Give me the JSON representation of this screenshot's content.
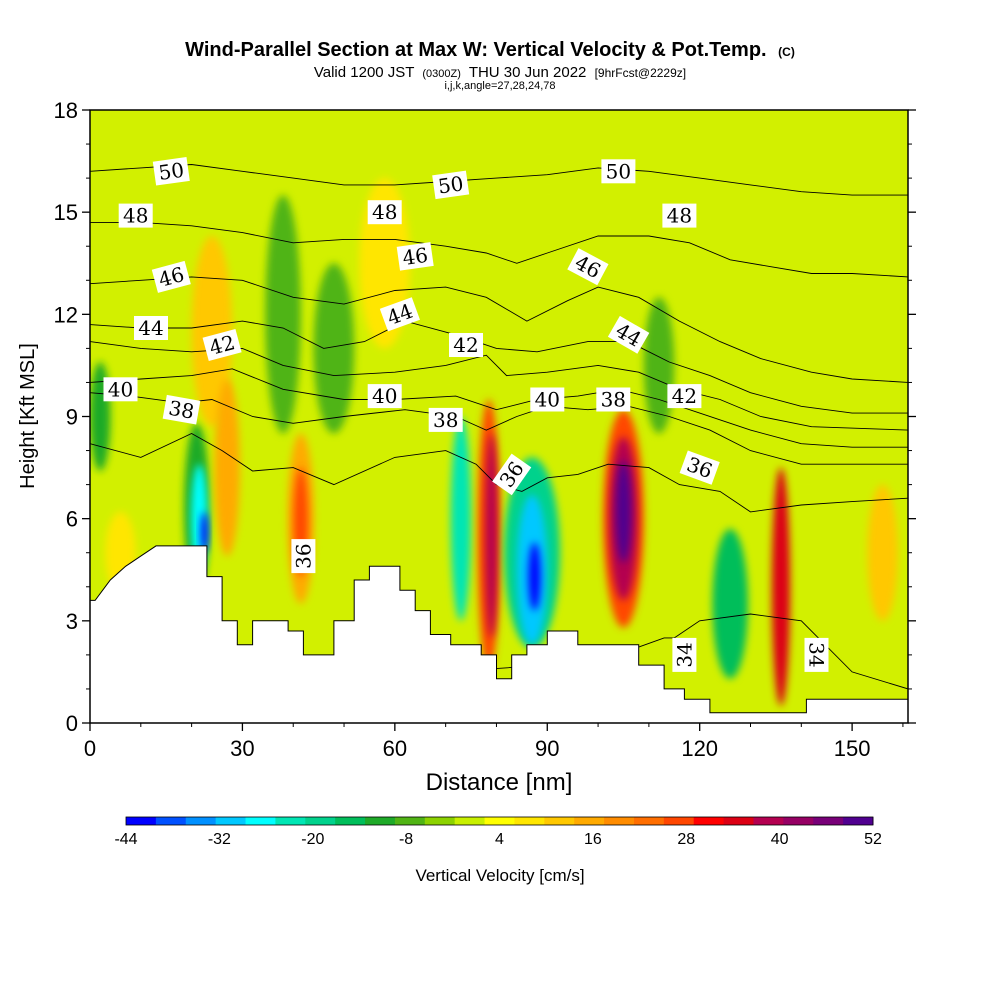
{
  "chart_data": {
    "type": "heatmap",
    "title": "Wind-Parallel Section at Max W: Vertical Velocity & Pot.Temp.",
    "title_mark": "(C)",
    "subtitle_parts": [
      "Valid 1200 JST",
      "(0300Z)",
      "THU 30 Jun 2022",
      "[9hrFcst@2229z]"
    ],
    "subtitle2": "i,j,k,angle=27,28,24,78",
    "xlabel": "Distance [nm]",
    "ylabel": "Height [Kft MSL]",
    "xlim": [
      0,
      161
    ],
    "ylim": [
      0,
      18
    ],
    "x_ticks": [
      0,
      30,
      60,
      90,
      120,
      150
    ],
    "y_ticks": [
      0,
      3,
      6,
      9,
      12,
      15,
      18
    ],
    "x_tick_labels": [
      "0",
      "30",
      "60",
      "90",
      "120",
      "150"
    ],
    "y_tick_labels": [
      "0",
      "3",
      "6",
      "9",
      "12",
      "15",
      "18"
    ],
    "colorbar": {
      "label": "Vertical Velocity [cm/s]",
      "levels": [
        -44,
        -40,
        -36,
        -32,
        -28,
        -24,
        -20,
        -16,
        -12,
        -8,
        -4,
        0,
        4,
        8,
        12,
        16,
        20,
        24,
        28,
        32,
        36,
        40,
        44,
        48,
        52
      ],
      "tick_labels": [
        "-44",
        "-32",
        "-20",
        "-8",
        "4",
        "16",
        "28",
        "40",
        "52"
      ],
      "colors": [
        "#0000ff",
        "#0050ff",
        "#0090ff",
        "#00c8ff",
        "#00ffff",
        "#00e6b4",
        "#00d28c",
        "#00be5a",
        "#1eaa28",
        "#50b414",
        "#8cd200",
        "#c8f000",
        "#ffff00",
        "#ffe600",
        "#ffc800",
        "#ffaa00",
        "#ff8c00",
        "#ff6e00",
        "#ff4600",
        "#ff0000",
        "#dc0014",
        "#b40050",
        "#960064",
        "#780078",
        "#500090"
      ]
    },
    "background_color": "#d2f000",
    "terrain_profile": [
      [
        0,
        3.6
      ],
      [
        1,
        3.6
      ],
      [
        4,
        4.2
      ],
      [
        7,
        4.6
      ],
      [
        10,
        4.9
      ],
      [
        13,
        5.2
      ],
      [
        23,
        5.2
      ],
      [
        23,
        4.3
      ],
      [
        26,
        4.3
      ],
      [
        26,
        3.0
      ],
      [
        29,
        3.0
      ],
      [
        29,
        2.3
      ],
      [
        32,
        2.3
      ],
      [
        32,
        3.0
      ],
      [
        39,
        3.0
      ],
      [
        39,
        2.7
      ],
      [
        42,
        2.7
      ],
      [
        42,
        2.0
      ],
      [
        48,
        2.0
      ],
      [
        48,
        3.0
      ],
      [
        52,
        3.0
      ],
      [
        52,
        4.2
      ],
      [
        55,
        4.2
      ],
      [
        55,
        4.6
      ],
      [
        61,
        4.6
      ],
      [
        61,
        3.9
      ],
      [
        64,
        3.9
      ],
      [
        64,
        3.3
      ],
      [
        67,
        3.3
      ],
      [
        67,
        2.6
      ],
      [
        71,
        2.6
      ],
      [
        71,
        2.3
      ],
      [
        77,
        2.3
      ],
      [
        77,
        2.0
      ],
      [
        80,
        2.0
      ],
      [
        80,
        1.3
      ],
      [
        83,
        1.3
      ],
      [
        83,
        2.0
      ],
      [
        86,
        2.0
      ],
      [
        86,
        2.3
      ],
      [
        90,
        2.3
      ],
      [
        90,
        2.7
      ],
      [
        96,
        2.7
      ],
      [
        96,
        2.3
      ],
      [
        108,
        2.3
      ],
      [
        108,
        1.7
      ],
      [
        113,
        1.7
      ],
      [
        113,
        1.0
      ],
      [
        117,
        1.0
      ],
      [
        117,
        0.7
      ],
      [
        122,
        0.7
      ],
      [
        122,
        0.3
      ],
      [
        141,
        0.3
      ],
      [
        141,
        0.7
      ],
      [
        161,
        0.7
      ]
    ],
    "cells": [
      {
        "x": 2,
        "y": 9.0,
        "w": 2,
        "h": 1.6,
        "value": -12
      },
      {
        "x": 6,
        "y": 5.0,
        "w": 3,
        "h": 1.2,
        "value": 8
      },
      {
        "x": 21,
        "y": 6.3,
        "w": 2.5,
        "h": 2.5,
        "value": -10
      },
      {
        "x": 21.5,
        "y": 6.0,
        "w": 1.6,
        "h": 1.6,
        "value": -28
      },
      {
        "x": 22.5,
        "y": 5.6,
        "w": 0.7,
        "h": 0.6,
        "value": -44
      },
      {
        "x": 24,
        "y": 11.5,
        "w": 4,
        "h": 2.8,
        "value": 12
      },
      {
        "x": 27,
        "y": 7.5,
        "w": 2.5,
        "h": 2.6,
        "value": 16
      },
      {
        "x": 41.5,
        "y": 6.0,
        "w": 2.6,
        "h": 2.5,
        "value": 16
      },
      {
        "x": 41.5,
        "y": 5.9,
        "w": 1.4,
        "h": 1.6,
        "value": 28
      },
      {
        "x": 38,
        "y": 12.0,
        "w": 3.5,
        "h": 3.5,
        "value": -8
      },
      {
        "x": 48,
        "y": 11.0,
        "w": 4,
        "h": 2.5,
        "value": -8
      },
      {
        "x": 58,
        "y": 13.5,
        "w": 5,
        "h": 2.5,
        "value": 8
      },
      {
        "x": 73,
        "y": 6.0,
        "w": 2,
        "h": 3.0,
        "value": -24
      },
      {
        "x": 78.5,
        "y": 5.5,
        "w": 2.2,
        "h": 4.0,
        "value": 28
      },
      {
        "x": 79,
        "y": 5.5,
        "w": 1.2,
        "h": 3.0,
        "value": 40
      },
      {
        "x": 87,
        "y": 5.0,
        "w": 5.5,
        "h": 2.8,
        "value": -20
      },
      {
        "x": 87,
        "y": 4.5,
        "w": 3.0,
        "h": 2.2,
        "value": -32
      },
      {
        "x": 87.5,
        "y": 4.3,
        "w": 1.2,
        "h": 1.0,
        "value": -44
      },
      {
        "x": 105,
        "y": 6.0,
        "w": 4.0,
        "h": 3.2,
        "value": 28
      },
      {
        "x": 105,
        "y": 6.0,
        "w": 2.8,
        "h": 2.4,
        "value": 40
      },
      {
        "x": 105,
        "y": 6.2,
        "w": 1.5,
        "h": 1.5,
        "value": 52
      },
      {
        "x": 112,
        "y": 10.5,
        "w": 3,
        "h": 2.0,
        "value": -8
      },
      {
        "x": 126,
        "y": 3.5,
        "w": 3.5,
        "h": 2.2,
        "value": -16
      },
      {
        "x": 136,
        "y": 4.0,
        "w": 1.8,
        "h": 3.5,
        "value": 36
      },
      {
        "x": 156,
        "y": 5.0,
        "w": 3,
        "h": 2.0,
        "value": 12
      }
    ],
    "isentropes": [
      {
        "level": 34,
        "points": [
          [
            10,
            1.0
          ],
          [
            40,
            1.2
          ],
          [
            70,
            1.5
          ],
          [
            100,
            1.8
          ],
          [
            113,
            2.5
          ],
          [
            115,
            2.5
          ],
          [
            120,
            3.0
          ],
          [
            130,
            3.2
          ],
          [
            140,
            3.0
          ],
          [
            150,
            1.5
          ],
          [
            161,
            1.0
          ]
        ]
      },
      {
        "level": 36,
        "points": [
          [
            0,
            8.2
          ],
          [
            10,
            7.8
          ],
          [
            20,
            8.5
          ],
          [
            26,
            8.0
          ],
          [
            32,
            7.4
          ],
          [
            40,
            7.5
          ],
          [
            48,
            7.0
          ],
          [
            60,
            7.8
          ],
          [
            70,
            8.0
          ],
          [
            76,
            7.6
          ],
          [
            80,
            7.0
          ],
          [
            85,
            6.8
          ],
          [
            90,
            7.2
          ],
          [
            96,
            7.3
          ],
          [
            102,
            7.6
          ],
          [
            110,
            7.5
          ],
          [
            116,
            7.0
          ],
          [
            124,
            6.8
          ],
          [
            130,
            6.2
          ],
          [
            140,
            6.4
          ],
          [
            150,
            6.5
          ],
          [
            161,
            6.6
          ]
        ]
      },
      {
        "level": 38,
        "points": [
          [
            0,
            9.7
          ],
          [
            8,
            9.6
          ],
          [
            18,
            9.4
          ],
          [
            24,
            9.5
          ],
          [
            32,
            9.0
          ],
          [
            40,
            8.8
          ],
          [
            50,
            9.0
          ],
          [
            62,
            9.2
          ],
          [
            72,
            9.0
          ],
          [
            78,
            8.6
          ],
          [
            84,
            9.0
          ],
          [
            90,
            9.3
          ],
          [
            98,
            9.2
          ],
          [
            106,
            9.3
          ],
          [
            114,
            9.0
          ],
          [
            122,
            8.6
          ],
          [
            130,
            8.0
          ],
          [
            140,
            7.6
          ],
          [
            150,
            7.6
          ],
          [
            161,
            7.6
          ]
        ]
      },
      {
        "level": 40,
        "points": [
          [
            0,
            10.0
          ],
          [
            10,
            10.1
          ],
          [
            20,
            10.2
          ],
          [
            28,
            10.4
          ],
          [
            38,
            9.8
          ],
          [
            50,
            9.5
          ],
          [
            60,
            9.5
          ],
          [
            72,
            9.6
          ],
          [
            80,
            9.2
          ],
          [
            88,
            9.5
          ],
          [
            96,
            9.6
          ],
          [
            104,
            9.8
          ],
          [
            112,
            9.5
          ],
          [
            120,
            9.1
          ],
          [
            130,
            8.6
          ],
          [
            140,
            8.2
          ],
          [
            150,
            8.1
          ],
          [
            161,
            8.1
          ]
        ]
      },
      {
        "level": 42,
        "points": [
          [
            0,
            11.2
          ],
          [
            10,
            11.0
          ],
          [
            20,
            10.9
          ],
          [
            30,
            11.0
          ],
          [
            38,
            10.5
          ],
          [
            48,
            10.2
          ],
          [
            60,
            10.3
          ],
          [
            70,
            10.5
          ],
          [
            78,
            10.8
          ],
          [
            82,
            10.2
          ],
          [
            90,
            10.3
          ],
          [
            100,
            10.5
          ],
          [
            108,
            10.3
          ],
          [
            116,
            9.8
          ],
          [
            124,
            9.5
          ],
          [
            132,
            9.0
          ],
          [
            142,
            8.7
          ],
          [
            161,
            8.6
          ]
        ]
      },
      {
        "level": 44,
        "points": [
          [
            0,
            11.7
          ],
          [
            10,
            11.6
          ],
          [
            20,
            11.6
          ],
          [
            30,
            11.8
          ],
          [
            38,
            11.6
          ],
          [
            46,
            11.0
          ],
          [
            54,
            11.2
          ],
          [
            62,
            11.8
          ],
          [
            72,
            11.4
          ],
          [
            80,
            11.0
          ],
          [
            88,
            10.9
          ],
          [
            98,
            11.2
          ],
          [
            106,
            11.2
          ],
          [
            114,
            10.6
          ],
          [
            122,
            10.2
          ],
          [
            130,
            9.7
          ],
          [
            140,
            9.3
          ],
          [
            150,
            9.1
          ],
          [
            161,
            9.1
          ]
        ]
      },
      {
        "level": 46,
        "points": [
          [
            0,
            12.9
          ],
          [
            10,
            13.0
          ],
          [
            20,
            13.1
          ],
          [
            30,
            13.0
          ],
          [
            40,
            12.5
          ],
          [
            50,
            12.3
          ],
          [
            60,
            12.7
          ],
          [
            70,
            12.8
          ],
          [
            78,
            12.5
          ],
          [
            86,
            11.8
          ],
          [
            94,
            12.4
          ],
          [
            100,
            12.8
          ],
          [
            108,
            12.5
          ],
          [
            116,
            11.8
          ],
          [
            124,
            11.2
          ],
          [
            132,
            10.7
          ],
          [
            142,
            10.3
          ],
          [
            150,
            10.1
          ],
          [
            161,
            10.0
          ]
        ]
      },
      {
        "level": 48,
        "points": [
          [
            0,
            14.7
          ],
          [
            10,
            14.7
          ],
          [
            20,
            14.6
          ],
          [
            30,
            14.4
          ],
          [
            40,
            14.1
          ],
          [
            50,
            14.2
          ],
          [
            60,
            14.2
          ],
          [
            70,
            14.0
          ],
          [
            78,
            13.8
          ],
          [
            84,
            13.5
          ],
          [
            90,
            13.8
          ],
          [
            100,
            14.3
          ],
          [
            110,
            14.3
          ],
          [
            118,
            14.1
          ],
          [
            126,
            13.6
          ],
          [
            134,
            13.4
          ],
          [
            142,
            13.2
          ],
          [
            150,
            13.2
          ],
          [
            161,
            13.1
          ]
        ]
      },
      {
        "level": 50,
        "points": [
          [
            0,
            16.2
          ],
          [
            10,
            16.3
          ],
          [
            20,
            16.4
          ],
          [
            30,
            16.2
          ],
          [
            40,
            16.0
          ],
          [
            50,
            15.8
          ],
          [
            60,
            15.8
          ],
          [
            70,
            15.9
          ],
          [
            80,
            16.0
          ],
          [
            90,
            16.1
          ],
          [
            100,
            16.3
          ],
          [
            110,
            16.2
          ],
          [
            120,
            16.0
          ],
          [
            130,
            15.8
          ],
          [
            140,
            15.6
          ],
          [
            150,
            15.5
          ],
          [
            161,
            15.5
          ]
        ]
      }
    ],
    "isentrope_labels": [
      {
        "text": "50",
        "x": 16,
        "y": 16.2,
        "angle": -8
      },
      {
        "text": "50",
        "x": 71,
        "y": 15.8,
        "angle": -8
      },
      {
        "text": "50",
        "x": 104,
        "y": 16.2,
        "angle": 0
      },
      {
        "text": "48",
        "x": 9,
        "y": 14.9,
        "angle": 0
      },
      {
        "text": "48",
        "x": 58,
        "y": 15.0,
        "angle": 0
      },
      {
        "text": "48",
        "x": 116,
        "y": 14.9,
        "angle": 0
      },
      {
        "text": "46",
        "x": 16,
        "y": 13.1,
        "angle": -15
      },
      {
        "text": "46",
        "x": 64,
        "y": 13.7,
        "angle": -8
      },
      {
        "text": "46",
        "x": 98,
        "y": 13.4,
        "angle": 28
      },
      {
        "text": "44",
        "x": 12,
        "y": 11.6,
        "angle": 0
      },
      {
        "text": "44",
        "x": 61,
        "y": 12.0,
        "angle": -20
      },
      {
        "text": "44",
        "x": 106,
        "y": 11.4,
        "angle": 30
      },
      {
        "text": "42",
        "x": 26,
        "y": 11.1,
        "angle": -15
      },
      {
        "text": "42",
        "x": 74,
        "y": 11.1,
        "angle": 0
      },
      {
        "text": "42",
        "x": 117,
        "y": 9.6,
        "angle": 0
      },
      {
        "text": "40",
        "x": 6,
        "y": 9.8,
        "angle": 0
      },
      {
        "text": "40",
        "x": 58,
        "y": 9.6,
        "angle": 0
      },
      {
        "text": "40",
        "x": 90,
        "y": 9.5,
        "angle": 0
      },
      {
        "text": "38",
        "x": 18,
        "y": 9.2,
        "angle": 10
      },
      {
        "text": "38",
        "x": 70,
        "y": 8.9,
        "angle": 0
      },
      {
        "text": "38",
        "x": 103,
        "y": 9.5,
        "angle": 0
      },
      {
        "text": "36",
        "x": 42,
        "y": 4.9,
        "angle": -90
      },
      {
        "text": "36",
        "x": 83,
        "y": 7.3,
        "angle": -55
      },
      {
        "text": "36",
        "x": 120,
        "y": 7.5,
        "angle": 20
      },
      {
        "text": "34",
        "x": 117,
        "y": 2.0,
        "angle": -90
      },
      {
        "text": "34",
        "x": 143,
        "y": 2.0,
        "angle": 90
      }
    ]
  }
}
